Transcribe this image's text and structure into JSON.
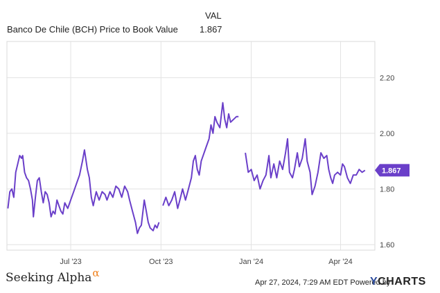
{
  "legend": {
    "column_header": "VAL",
    "series_label": "Banco De Chile (BCH) Price to Book Value",
    "current_value": "1.867"
  },
  "footer": {
    "brand": "Seeking Alpha",
    "brand_mark": "α",
    "timestamp": "Apr 27, 2024, 7:29 AM EDT Powered by",
    "provider_y": "Y",
    "provider_rest": "CHARTS"
  },
  "colors": {
    "series": "#6a3fc9",
    "grid": "#e2e2e2",
    "axis_text": "#444444"
  },
  "chart_data": {
    "type": "line",
    "x_start": "2023-04-27",
    "x_end": "2024-05-06",
    "ylim": [
      1.58,
      2.33
    ],
    "yticks": [
      1.6,
      1.8,
      2.0,
      2.2
    ],
    "ytick_labels": [
      "1.60",
      "1.80",
      "2.00",
      "2.20"
    ],
    "xticks": [
      {
        "date": "2023-07-01",
        "label": "Jul '23"
      },
      {
        "date": "2023-10-01",
        "label": "Oct '23"
      },
      {
        "date": "2024-01-01",
        "label": "Jan '24"
      },
      {
        "date": "2024-04-01",
        "label": "Apr '24"
      }
    ],
    "end_label": "1.867",
    "series": [
      {
        "values": [
          [
            "2023-04-28",
            1.73
          ],
          [
            "2023-04-30",
            1.79
          ],
          [
            "2023-05-02",
            1.8
          ],
          [
            "2023-05-04",
            1.77
          ],
          [
            "2023-05-06",
            1.86
          ],
          [
            "2023-05-08",
            1.89
          ],
          [
            "2023-05-10",
            1.92
          ],
          [
            "2023-05-12",
            1.91
          ],
          [
            "2023-05-13",
            1.92
          ],
          [
            "2023-05-15",
            1.86
          ],
          [
            "2023-05-17",
            1.84
          ],
          [
            "2023-05-19",
            1.83
          ],
          [
            "2023-05-21",
            1.8
          ],
          [
            "2023-05-23",
            1.76
          ],
          [
            "2023-05-24",
            1.7
          ],
          [
            "2023-05-26",
            1.77
          ],
          [
            "2023-05-28",
            1.83
          ],
          [
            "2023-05-30",
            1.84
          ],
          [
            "2023-06-01",
            1.79
          ],
          [
            "2023-06-03",
            1.75
          ],
          [
            "2023-06-05",
            1.79
          ],
          [
            "2023-06-07",
            1.78
          ],
          [
            "2023-06-09",
            1.75
          ],
          [
            "2023-06-11",
            1.7
          ],
          [
            "2023-06-13",
            1.72
          ],
          [
            "2023-06-15",
            1.71
          ],
          [
            "2023-06-17",
            1.76
          ],
          [
            "2023-06-19",
            1.74
          ],
          [
            "2023-06-21",
            1.72
          ],
          [
            "2023-06-23",
            1.71
          ],
          [
            "2023-06-25",
            1.75
          ],
          [
            "2023-06-28",
            1.73
          ],
          [
            "2023-07-01",
            1.76
          ],
          [
            "2023-07-04",
            1.79
          ],
          [
            "2023-07-07",
            1.82
          ],
          [
            "2023-07-10",
            1.85
          ],
          [
            "2023-07-13",
            1.9
          ],
          [
            "2023-07-15",
            1.94
          ],
          [
            "2023-07-18",
            1.87
          ],
          [
            "2023-07-20",
            1.84
          ],
          [
            "2023-07-22",
            1.77
          ],
          [
            "2023-07-24",
            1.74
          ],
          [
            "2023-07-27",
            1.79
          ],
          [
            "2023-07-30",
            1.76
          ],
          [
            "2023-08-02",
            1.79
          ],
          [
            "2023-08-05",
            1.78
          ],
          [
            "2023-08-07",
            1.76
          ],
          [
            "2023-08-10",
            1.79
          ],
          [
            "2023-08-13",
            1.77
          ],
          [
            "2023-08-16",
            1.81
          ],
          [
            "2023-08-19",
            1.8
          ],
          [
            "2023-08-22",
            1.77
          ],
          [
            "2023-08-25",
            1.81
          ],
          [
            "2023-08-28",
            1.79
          ],
          [
            "2023-08-30",
            1.76
          ],
          [
            "2023-09-02",
            1.72
          ],
          [
            "2023-09-05",
            1.68
          ],
          [
            "2023-09-07",
            1.64
          ],
          [
            "2023-09-09",
            1.66
          ],
          [
            "2023-09-11",
            1.67
          ],
          [
            "2023-09-14",
            1.76
          ],
          [
            "2023-09-16",
            1.72
          ],
          [
            "2023-09-18",
            1.68
          ],
          [
            "2023-09-20",
            1.66
          ],
          [
            "2023-09-23",
            1.65
          ],
          [
            "2023-09-25",
            1.67
          ],
          [
            "2023-09-27",
            1.66
          ],
          [
            "2023-09-29",
            1.68
          ],
          [
            "2023-10-01",
            null
          ],
          [
            "2023-10-03",
            1.74
          ],
          [
            "2023-10-06",
            1.77
          ],
          [
            "2023-10-09",
            1.74
          ],
          [
            "2023-10-12",
            1.76
          ],
          [
            "2023-10-15",
            1.79
          ],
          [
            "2023-10-18",
            1.73
          ],
          [
            "2023-10-21",
            1.77
          ],
          [
            "2023-10-23",
            1.8
          ],
          [
            "2023-10-26",
            1.76
          ],
          [
            "2023-10-29",
            1.8
          ],
          [
            "2023-11-01",
            1.84
          ],
          [
            "2023-11-03",
            1.9
          ],
          [
            "2023-11-05",
            1.92
          ],
          [
            "2023-11-07",
            1.87
          ],
          [
            "2023-11-09",
            1.85
          ],
          [
            "2023-11-11",
            1.9
          ],
          [
            "2023-11-13",
            1.92
          ],
          [
            "2023-11-16",
            1.95
          ],
          [
            "2023-11-19",
            1.98
          ],
          [
            "2023-11-21",
            2.03
          ],
          [
            "2023-11-23",
            2.0
          ],
          [
            "2023-11-25",
            2.06
          ],
          [
            "2023-11-27",
            2.04
          ],
          [
            "2023-11-30",
            2.02
          ],
          [
            "2023-12-03",
            2.11
          ],
          [
            "2023-12-05",
            2.05
          ],
          [
            "2023-12-07",
            2.02
          ],
          [
            "2023-12-09",
            2.07
          ],
          [
            "2023-12-11",
            2.04
          ],
          [
            "2023-12-14",
            2.05
          ],
          [
            "2023-12-17",
            2.06
          ],
          [
            "2023-12-19",
            2.06
          ],
          [
            "2023-12-24",
            null
          ],
          [
            "2023-12-26",
            1.93
          ],
          [
            "2023-12-29",
            1.86
          ],
          [
            "2024-01-01",
            1.87
          ],
          [
            "2024-01-04",
            1.83
          ],
          [
            "2024-01-07",
            1.85
          ],
          [
            "2024-01-10",
            1.8
          ],
          [
            "2024-01-13",
            1.83
          ],
          [
            "2024-01-16",
            1.85
          ],
          [
            "2024-01-19",
            1.92
          ],
          [
            "2024-01-21",
            1.84
          ],
          [
            "2024-01-24",
            1.89
          ],
          [
            "2024-01-27",
            1.84
          ],
          [
            "2024-01-30",
            1.9
          ],
          [
            "2024-02-02",
            1.87
          ],
          [
            "2024-02-05",
            1.93
          ],
          [
            "2024-02-07",
            1.98
          ],
          [
            "2024-02-09",
            1.86
          ],
          [
            "2024-02-12",
            1.84
          ],
          [
            "2024-02-14",
            1.87
          ],
          [
            "2024-02-17",
            1.93
          ],
          [
            "2024-02-19",
            1.88
          ],
          [
            "2024-02-22",
            1.91
          ],
          [
            "2024-02-25",
            1.98
          ],
          [
            "2024-02-27",
            1.9
          ],
          [
            "2024-03-01",
            1.86
          ],
          [
            "2024-03-03",
            1.78
          ],
          [
            "2024-03-06",
            1.81
          ],
          [
            "2024-03-09",
            1.86
          ],
          [
            "2024-03-12",
            1.93
          ],
          [
            "2024-03-15",
            1.91
          ],
          [
            "2024-03-18",
            1.92
          ],
          [
            "2024-03-20",
            1.87
          ],
          [
            "2024-03-22",
            1.84
          ],
          [
            "2024-03-24",
            1.82
          ],
          [
            "2024-03-26",
            1.85
          ],
          [
            "2024-03-29",
            1.86
          ],
          [
            "2024-04-01",
            1.85
          ],
          [
            "2024-04-03",
            1.89
          ],
          [
            "2024-04-05",
            1.88
          ],
          [
            "2024-04-08",
            1.84
          ],
          [
            "2024-04-11",
            1.82
          ],
          [
            "2024-04-14",
            1.85
          ],
          [
            "2024-04-17",
            1.85
          ],
          [
            "2024-04-20",
            1.87
          ],
          [
            "2024-04-23",
            1.86
          ],
          [
            "2024-04-26",
            1.867
          ]
        ]
      }
    ]
  }
}
